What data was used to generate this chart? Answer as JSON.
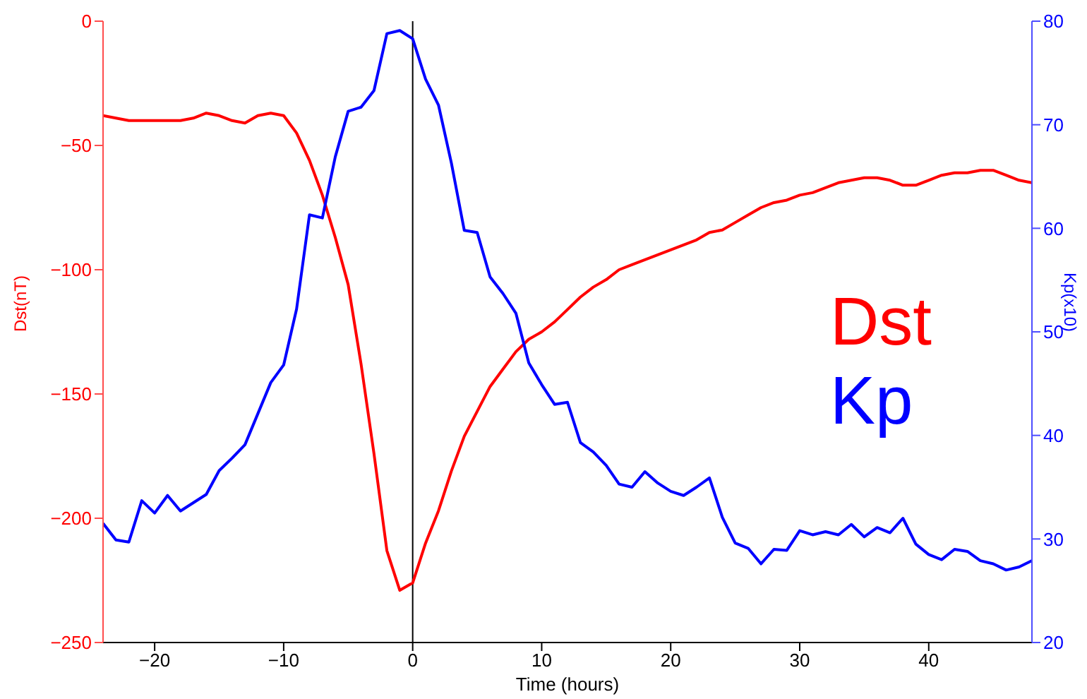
{
  "chart_data": {
    "type": "line",
    "xlabel": "Time (hours)",
    "ylabel": "Dst(nT)",
    "y2label": "Kp(x10)",
    "x": [
      -24,
      -23,
      -22,
      -21,
      -20,
      -19,
      -18,
      -17,
      -16,
      -15,
      -14,
      -13,
      -12,
      -11,
      -10,
      -9,
      -8,
      -7,
      -6,
      -5,
      -4,
      -3,
      -2,
      -1,
      0,
      1,
      2,
      3,
      4,
      5,
      6,
      7,
      8,
      9,
      10,
      11,
      12,
      13,
      14,
      15,
      16,
      17,
      18,
      19,
      20,
      21,
      22,
      23,
      24,
      25,
      26,
      27,
      28,
      29,
      30,
      31,
      32,
      33,
      34,
      35,
      36,
      37,
      38,
      39,
      40,
      41,
      42,
      43,
      44,
      45,
      46,
      47,
      48
    ],
    "series": [
      {
        "name": "Dst",
        "color": "#ff0000",
        "values": [
          -38,
          -39,
          -40,
          -40,
          -40,
          -40,
          -40,
          -39,
          -37,
          -38,
          -40,
          -41,
          -38,
          -37,
          -38,
          -45,
          -56,
          -70,
          -87,
          -106,
          -138,
          -174,
          -213,
          -229,
          -226,
          -210,
          -197,
          -181,
          -167,
          -157,
          -147,
          -140,
          -133,
          -128,
          -125,
          -121,
          -116,
          -111,
          -107,
          -104,
          -100,
          -98,
          -96,
          -94,
          -92,
          -90,
          -88,
          -85,
          -84,
          -81,
          -78,
          -75,
          -73,
          -72,
          -70,
          -69,
          -67,
          -65,
          -64,
          -63,
          -63,
          -64,
          -66,
          -66,
          -64,
          -62,
          -61,
          -61,
          -60,
          -60,
          -62,
          -64,
          -65
        ]
      },
      {
        "name": "Kp",
        "color": "#0000ff",
        "axis": "y2",
        "values": [
          31.5,
          29.9,
          29.7,
          33.7,
          32.5,
          34.2,
          32.7,
          33.5,
          34.3,
          36.6,
          37.8,
          39.1,
          42.1,
          45.1,
          46.8,
          52.2,
          61.3,
          61.0,
          66.9,
          71.3,
          71.7,
          73.3,
          78.8,
          79.1,
          78.3,
          74.4,
          71.9,
          66.3,
          59.8,
          59.6,
          55.3,
          53.7,
          51.8,
          47.0,
          44.9,
          43.0,
          43.2,
          39.3,
          38.4,
          37.1,
          35.3,
          35.0,
          36.5,
          35.4,
          34.6,
          34.2,
          35.0,
          35.9,
          32.1,
          29.6,
          29.1,
          27.6,
          29.0,
          28.9,
          30.8,
          30.4,
          30.7,
          30.4,
          31.4,
          30.2,
          31.1,
          30.6,
          32.0,
          29.5,
          28.5,
          28.0,
          29.0,
          28.8,
          27.9,
          27.6,
          27.0,
          27.3,
          27.9
        ]
      }
    ],
    "xlim": [
      -24,
      48
    ],
    "xticks": [
      -20,
      -10,
      0,
      10,
      20,
      30,
      40
    ],
    "ylim": [
      -250,
      0
    ],
    "yticks": [
      -250,
      -200,
      -150,
      -100,
      -50,
      0
    ],
    "y2lim": [
      20,
      80
    ],
    "y2ticks": [
      20,
      30,
      40,
      50,
      60,
      70,
      80
    ],
    "ref_lines": [
      {
        "axis": "x",
        "value": 0,
        "color": "#000000"
      }
    ],
    "grid": false,
    "legend": "right",
    "marker": "none",
    "line_style": "solid"
  }
}
